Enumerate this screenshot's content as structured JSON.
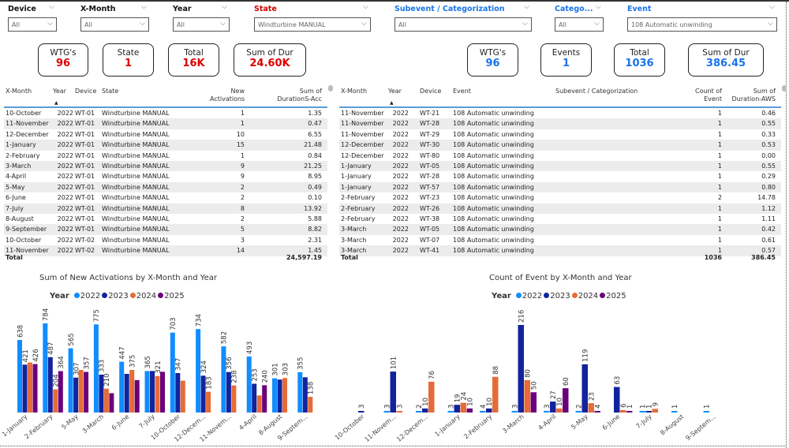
{
  "filters_left": [
    {
      "label": "Device",
      "value": "All"
    },
    {
      "label": "X-Month",
      "value": "All"
    },
    {
      "label": "Year",
      "value": "All"
    },
    {
      "label": "State",
      "value": "Windturbine MANUAL",
      "highlight": "#d00000"
    }
  ],
  "filters_right": [
    {
      "label": "Subevent / Categorization",
      "value": "All"
    },
    {
      "label": "Catego...",
      "value": "All"
    },
    {
      "label": "Event",
      "value": "108 Automatic unwinding"
    }
  ],
  "kpis_left": [
    {
      "title": "WTG's",
      "value": "96"
    },
    {
      "title": "State",
      "value": "1"
    },
    {
      "title": "Total",
      "value": "16K"
    },
    {
      "title": "Sum of Dur",
      "value": "24.60K"
    }
  ],
  "kpis_right": [
    {
      "title": "WTG's",
      "value": "96"
    },
    {
      "title": "Events",
      "value": "1"
    },
    {
      "title": "Total",
      "value": "1036"
    },
    {
      "title": "Sum of Dur",
      "value": "386.45"
    }
  ],
  "colors": {
    "left_accent": "#d00000",
    "right_accent": "#1a73e8",
    "y2022": "#118dff",
    "y2023": "#12239e",
    "y2024": "#e66c37",
    "y2025": "#6b007b"
  },
  "table_left": {
    "columns": [
      "X-Month",
      "Year",
      "Device",
      "State",
      "New Activations",
      "Sum of DurationS-Acc"
    ],
    "rows": [
      [
        "10-October",
        "2022",
        "WT-01",
        "Windturbine MANUAL",
        "1",
        "1.35"
      ],
      [
        "11-November",
        "2022",
        "WT-01",
        "Windturbine MANUAL",
        "1",
        "0.47"
      ],
      [
        "12-December",
        "2022",
        "WT-01",
        "Windturbine MANUAL",
        "10",
        "6.55"
      ],
      [
        "1-January",
        "2022",
        "WT-01",
        "Windturbine MANUAL",
        "15",
        "21.48"
      ],
      [
        "2-February",
        "2022",
        "WT-01",
        "Windturbine MANUAL",
        "1",
        "0.84"
      ],
      [
        "3-March",
        "2022",
        "WT-01",
        "Windturbine MANUAL",
        "9",
        "21.25"
      ],
      [
        "4-April",
        "2022",
        "WT-01",
        "Windturbine MANUAL",
        "9",
        "8.95"
      ],
      [
        "5-May",
        "2022",
        "WT-01",
        "Windturbine MANUAL",
        "2",
        "0.49"
      ],
      [
        "6-June",
        "2022",
        "WT-01",
        "Windturbine MANUAL",
        "2",
        "0.10"
      ],
      [
        "7-July",
        "2022",
        "WT-01",
        "Windturbine MANUAL",
        "8",
        "13.92"
      ],
      [
        "8-August",
        "2022",
        "WT-01",
        "Windturbine MANUAL",
        "2",
        "5.88"
      ],
      [
        "9-September",
        "2022",
        "WT-01",
        "Windturbine MANUAL",
        "5",
        "8.82"
      ],
      [
        "10-October",
        "2022",
        "WT-02",
        "Windturbine MANUAL",
        "3",
        "2.31"
      ],
      [
        "11-November",
        "2022",
        "WT-02",
        "Windturbine MANUAL",
        "14",
        "1.45"
      ]
    ],
    "total_label": "Total",
    "total_value": "24,597.19"
  },
  "table_right": {
    "columns": [
      "X-Month",
      "Year",
      "Device",
      "Event",
      "Subevent / Categorization",
      "Count of Event",
      "Sum of Duration-AWS"
    ],
    "rows": [
      [
        "11-November",
        "2022",
        "WT-21",
        "108 Automatic unwinding",
        "",
        "1",
        "0.46"
      ],
      [
        "11-November",
        "2022",
        "WT-28",
        "108 Automatic unwinding",
        "",
        "1",
        "0.55"
      ],
      [
        "11-November",
        "2022",
        "WT-29",
        "108 Automatic unwinding",
        "",
        "1",
        "0.33"
      ],
      [
        "12-December",
        "2022",
        "WT-30",
        "108 Automatic unwinding",
        "",
        "1",
        "0.53"
      ],
      [
        "12-December",
        "2022",
        "WT-80",
        "108 Automatic unwinding",
        "",
        "1",
        "0.00"
      ],
      [
        "1-January",
        "2022",
        "WT-05",
        "108 Automatic unwinding",
        "",
        "1",
        "0.55"
      ],
      [
        "1-January",
        "2022",
        "WT-28",
        "108 Automatic unwinding",
        "",
        "1",
        "0.29"
      ],
      [
        "1-January",
        "2022",
        "WT-57",
        "108 Automatic unwinding",
        "",
        "1",
        "0.80"
      ],
      [
        "2-February",
        "2022",
        "WT-23",
        "108 Automatic unwinding",
        "",
        "2",
        "14.78"
      ],
      [
        "2-February",
        "2022",
        "WT-26",
        "108 Automatic unwinding",
        "",
        "1",
        "1.12"
      ],
      [
        "2-February",
        "2022",
        "WT-38",
        "108 Automatic unwinding",
        "",
        "1",
        "1.11"
      ],
      [
        "3-March",
        "2022",
        "WT-05",
        "108 Automatic unwinding",
        "",
        "1",
        "0.42"
      ],
      [
        "3-March",
        "2022",
        "WT-07",
        "108 Automatic unwinding",
        "",
        "1",
        "0.61"
      ],
      [
        "3-March",
        "2022",
        "WT-41",
        "108 Automatic unwinding",
        "",
        "1",
        "0.57"
      ]
    ],
    "total_label": "Total",
    "total_count": "1036",
    "total_value": "386.45"
  },
  "chart_data": [
    {
      "type": "bar",
      "title": "Sum of New Activations by X-Month and Year",
      "legend_title": "Year",
      "legend": "top",
      "categories": [
        "1-January",
        "2-February",
        "5-May",
        "3-March",
        "6-June",
        "7-July",
        "10-October",
        "12-Decem...",
        "11-Novem...",
        "4-April",
        "8-August",
        "9-Septem..."
      ],
      "series": [
        {
          "name": "2022",
          "values": [
            638,
            784,
            565,
            775,
            447,
            365,
            703,
            734,
            582,
            493,
            301,
            355
          ]
        },
        {
          "name": "2023",
          "values": [
            421,
            487,
            307,
            333,
            340,
            365,
            347,
            324,
            356,
            253,
            290,
            310
          ]
        },
        {
          "name": "2024",
          "values": [
            440,
            204,
            375,
            210,
            375,
            321,
            280,
            183,
            238,
            150,
            303,
            138
          ]
        },
        {
          "name": "2025",
          "values": [
            426,
            364,
            357,
            170,
            285,
            358,
            null,
            null,
            null,
            240,
            null,
            null
          ]
        }
      ],
      "data_labels": [
        [
          638,
          784,
          565,
          775,
          447,
          365,
          703,
          734,
          582,
          493,
          301,
          355
        ],
        [
          421,
          487,
          307,
          333,
          null,
          null,
          347,
          324,
          356,
          253,
          null,
          null
        ],
        [
          null,
          204,
          null,
          210,
          375,
          321,
          null,
          183,
          238,
          null,
          303,
          138
        ],
        [
          426,
          364,
          357,
          null,
          null,
          null,
          null,
          null,
          null,
          240,
          null,
          null
        ]
      ]
    },
    {
      "type": "bar",
      "title": "Count of Event by X-Month and Year",
      "legend_title": "Year",
      "legend": "top",
      "categories": [
        "10-October",
        "11-Novem...",
        "12-Decem...",
        "1-January",
        "2-February",
        "3-March",
        "4-April",
        "5-May",
        "6-June",
        "7-July",
        "8-August",
        "9-Septem..."
      ],
      "series": [
        {
          "name": "2022",
          "values": [
            null,
            3,
            2,
            3,
            4,
            3,
            3,
            2,
            null,
            1,
            1,
            1
          ]
        },
        {
          "name": "2023",
          "values": [
            3,
            101,
            10,
            19,
            10,
            216,
            27,
            119,
            63,
            1,
            null,
            null
          ]
        },
        {
          "name": "2024",
          "values": [
            null,
            3,
            76,
            24,
            88,
            80,
            10,
            23,
            6,
            9,
            null,
            null
          ]
        },
        {
          "name": "2025",
          "values": [
            null,
            null,
            null,
            10,
            null,
            50,
            60,
            4,
            1,
            null,
            null,
            null
          ]
        }
      ]
    }
  ]
}
